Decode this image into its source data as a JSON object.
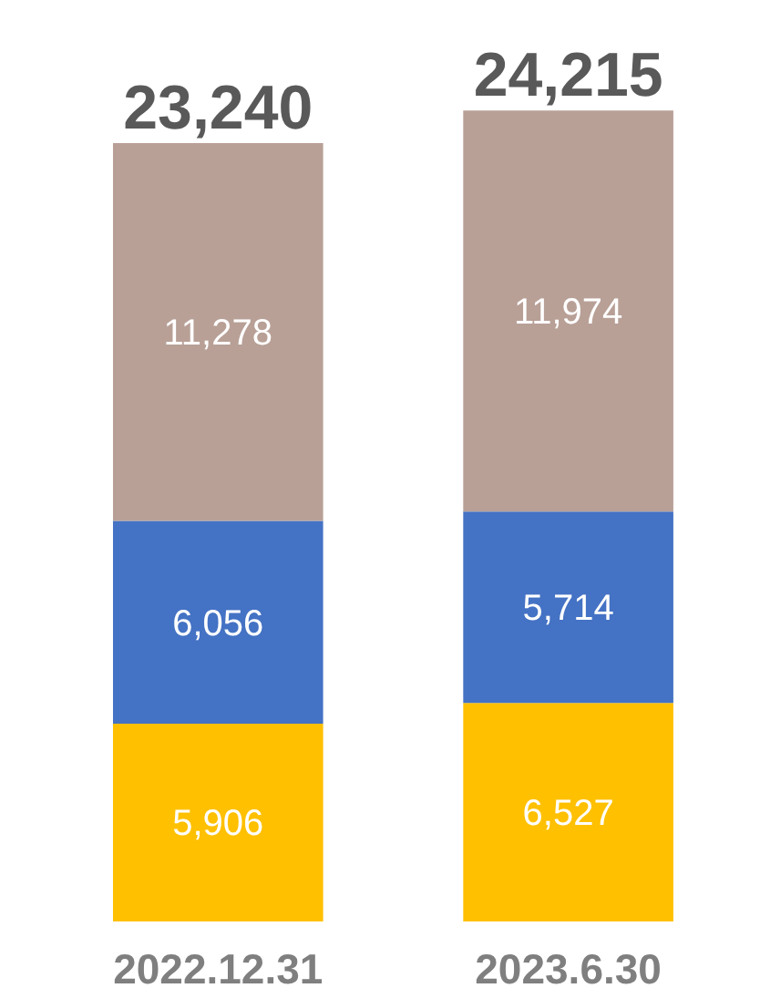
{
  "chart_data": {
    "type": "bar",
    "stacked": true,
    "categories": [
      "2022.12.31",
      "2023.6.30"
    ],
    "series": [
      {
        "color": "#ffc000",
        "values": [
          5906,
          6527
        ],
        "value_labels": [
          "5,906",
          "6,527"
        ]
      },
      {
        "color": "#4472c4",
        "values": [
          6056,
          5714
        ],
        "value_labels": [
          "6,056",
          "5,714"
        ]
      },
      {
        "color": "#b8a097",
        "values": [
          11278,
          11974
        ],
        "value_labels": [
          "11,278",
          "11,974"
        ]
      }
    ],
    "totals": [
      "23,240",
      "24,215"
    ],
    "tick_labels": "x",
    "grid": false
  }
}
